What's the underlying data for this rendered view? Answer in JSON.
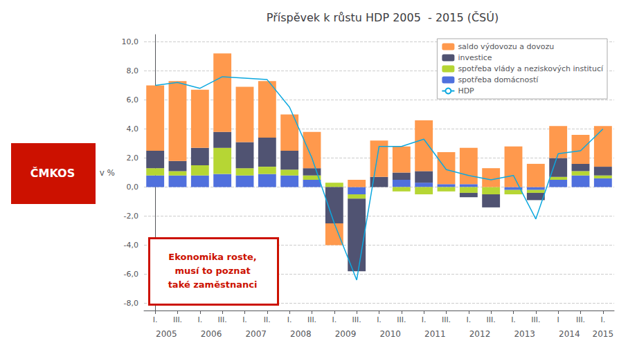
{
  "chart_data": {
    "type": "bar",
    "stacked": true,
    "title": "Příspěvek k růstu HDP 2005  - 2015 (ČSÚ)",
    "y_label": "v %",
    "categories": [
      "I.",
      "III.",
      "I.",
      "III.",
      "I.",
      "II.",
      "I.",
      "III.",
      "I.",
      "III.",
      "I.",
      "III.",
      "I.",
      "III.",
      "I.",
      "III.",
      "I.",
      "III.",
      "I",
      "III.",
      "I."
    ],
    "x_groups": [
      {
        "label": "2005",
        "count": 2
      },
      {
        "label": "2006",
        "count": 2
      },
      {
        "label": "2007",
        "count": 2
      },
      {
        "label": "2008",
        "count": 2
      },
      {
        "label": "2009",
        "count": 2
      },
      {
        "label": "2010",
        "count": 2
      },
      {
        "label": "2011",
        "count": 2
      },
      {
        "label": "2012",
        "count": 2
      },
      {
        "label": "2013",
        "count": 2
      },
      {
        "label": "2014",
        "count": 2
      },
      {
        "label": "2015",
        "count": 1
      }
    ],
    "series": [
      {
        "name": "saldo výdovozu a dovozu",
        "type": "bar",
        "values": [
          4.5,
          5.5,
          4.0,
          5.4,
          3.8,
          3.9,
          2.5,
          2.5,
          -1.5,
          0.5,
          2.5,
          1.8,
          3.5,
          2.2,
          2.5,
          1.3,
          2.8,
          1.6,
          2.2,
          2.0,
          2.8
        ]
      },
      {
        "name": "investice",
        "type": "bar",
        "values": [
          1.2,
          0.7,
          1.2,
          1.1,
          1.8,
          2.0,
          1.3,
          0.5,
          -2.5,
          -5.0,
          0.7,
          0.5,
          0.8,
          0.0,
          -0.3,
          -0.9,
          0.0,
          -0.5,
          1.3,
          0.5,
          0.6
        ]
      },
      {
        "name": "spotřeba vlády a neziskových institucí",
        "type": "bar",
        "values": [
          0.5,
          0.3,
          0.7,
          1.8,
          0.5,
          0.5,
          0.4,
          0.3,
          0.3,
          -0.3,
          0.0,
          -0.3,
          -0.5,
          -0.3,
          -0.4,
          -0.5,
          -0.3,
          -0.2,
          0.2,
          0.3,
          0.2
        ]
      },
      {
        "name": "spotřeba domácností",
        "type": "bar",
        "values": [
          0.8,
          0.8,
          0.8,
          0.9,
          0.8,
          0.9,
          0.8,
          0.5,
          0.0,
          -0.5,
          0.0,
          0.5,
          0.3,
          0.2,
          0.2,
          0.0,
          -0.2,
          -0.2,
          0.5,
          0.8,
          0.6
        ]
      },
      {
        "name": "HDP",
        "type": "line",
        "values": [
          7.0,
          7.2,
          6.8,
          7.6,
          7.5,
          7.4,
          5.5,
          2.0,
          -2.5,
          -6.4,
          2.8,
          2.8,
          3.3,
          1.2,
          0.8,
          0.5,
          0.8,
          -2.2,
          2.3,
          2.5,
          4.0
        ]
      }
    ],
    "ylim": [
      -8.5,
      10.5
    ],
    "yticks": [
      {
        "value": -8.0,
        "label": "-8,0"
      },
      {
        "value": -6.0,
        "label": "-6,0"
      },
      {
        "value": -4.0,
        "label": "-4,0"
      },
      {
        "value": -2.0,
        "label": "-2,0"
      },
      {
        "value": 0.0,
        "label": "0,0"
      },
      {
        "value": 2.0,
        "label": "2,0"
      },
      {
        "value": 4.0,
        "label": "4,0"
      },
      {
        "value": 6.0,
        "label": "6,0"
      },
      {
        "value": 8.0,
        "label": "8,0"
      },
      {
        "value": 10.0,
        "label": "10,0"
      }
    ],
    "grid": true,
    "legend": "upper right",
    "annotations": [
      {
        "text": "ČMKOS",
        "color": "#cc1100"
      },
      {
        "text": "Ekonomika roste,\nmusí to poznat\ntaké zaměstnanci",
        "color": "#cc1100"
      }
    ]
  }
}
